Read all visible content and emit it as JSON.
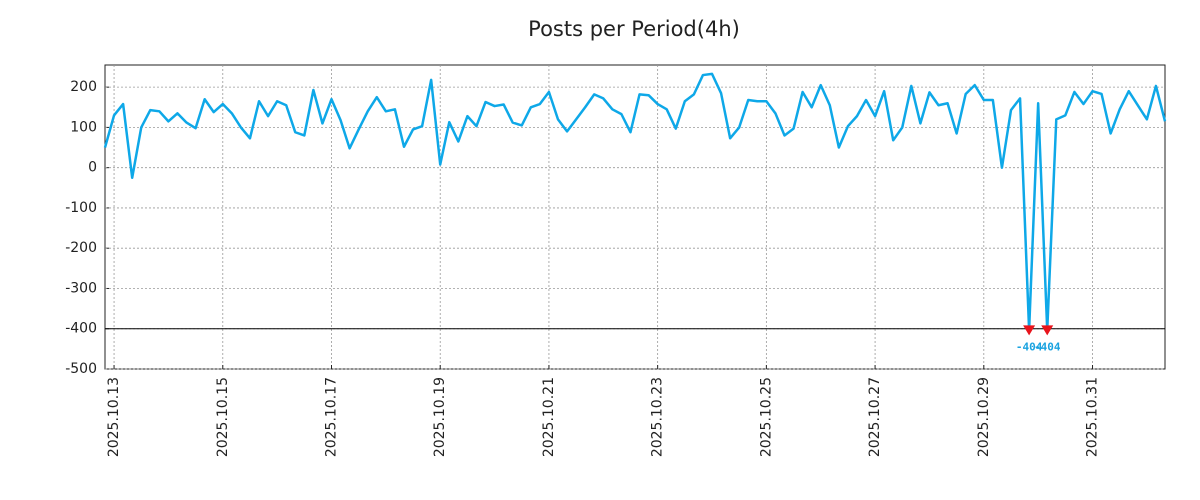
{
  "chart_data": {
    "type": "line",
    "title": "Posts per Period(4h)",
    "categories": [
      null,
      "2025.10.13",
      null,
      null,
      null,
      null,
      null,
      null,
      null,
      null,
      null,
      null,
      null,
      "2025.10.15",
      null,
      null,
      null,
      null,
      null,
      null,
      null,
      null,
      null,
      null,
      null,
      "2025.10.17",
      null,
      null,
      null,
      null,
      null,
      null,
      null,
      null,
      null,
      null,
      null,
      "2025.10.19",
      null,
      null,
      null,
      null,
      null,
      null,
      null,
      null,
      null,
      null,
      null,
      "2025.10.21",
      null,
      null,
      null,
      null,
      null,
      null,
      null,
      null,
      null,
      null,
      null,
      "2025.10.23",
      null,
      null,
      null,
      null,
      null,
      null,
      null,
      null,
      null,
      null,
      null,
      "2025.10.25",
      null,
      null,
      null,
      null,
      null,
      null,
      null,
      null,
      null,
      null,
      null,
      "2025.10.27",
      null,
      null,
      null,
      null,
      null,
      null,
      null,
      null,
      null,
      null,
      null,
      "2025.10.29",
      null,
      null,
      null,
      null,
      null,
      null,
      null,
      null,
      null,
      null,
      null,
      "2025.10.31",
      null,
      null,
      null,
      null,
      null,
      null,
      null,
      null
    ],
    "values": [
      50,
      130,
      158,
      -25,
      100,
      143,
      140,
      115,
      135,
      112,
      98,
      170,
      138,
      158,
      135,
      100,
      73,
      165,
      128,
      165,
      155,
      88,
      80,
      193,
      110,
      170,
      118,
      48,
      95,
      140,
      175,
      140,
      145,
      52,
      95,
      103,
      218,
      8,
      113,
      65,
      128,
      103,
      163,
      153,
      157,
      112,
      105,
      150,
      158,
      188,
      120,
      90,
      120,
      150,
      182,
      172,
      145,
      133,
      88,
      182,
      180,
      158,
      145,
      97,
      165,
      182,
      230,
      233,
      185,
      73,
      100,
      168,
      165,
      165,
      135,
      80,
      97,
      188,
      150,
      205,
      155,
      50,
      103,
      128,
      168,
      128,
      190,
      68,
      100,
      203,
      110,
      187,
      155,
      160,
      85,
      183,
      205,
      168,
      168,
      0,
      143,
      172,
      -404,
      160,
      -404,
      120,
      130,
      188,
      158,
      190,
      183,
      85,
      145,
      190,
      155,
      120,
      203,
      115
    ],
    "value_labels": [
      null,
      null,
      null,
      null,
      null,
      null,
      null,
      null,
      null,
      null,
      null,
      null,
      null,
      null,
      null,
      null,
      null,
      null,
      null,
      null,
      null,
      null,
      null,
      null,
      null,
      null,
      null,
      null,
      null,
      null,
      null,
      null,
      null,
      null,
      null,
      null,
      null,
      null,
      null,
      null,
      null,
      null,
      null,
      null,
      null,
      null,
      null,
      null,
      null,
      null,
      null,
      null,
      null,
      null,
      null,
      null,
      null,
      null,
      null,
      null,
      null,
      null,
      null,
      null,
      null,
      null,
      null,
      null,
      null,
      null,
      null,
      null,
      null,
      null,
      null,
      null,
      null,
      null,
      null,
      null,
      null,
      null,
      null,
      null,
      null,
      null,
      null,
      null,
      null,
      null,
      null,
      null,
      null,
      null,
      null,
      null,
      null,
      null,
      null,
      null,
      null,
      null,
      "-404",
      null,
      "-404",
      null,
      null,
      null,
      null,
      null,
      null,
      null,
      null,
      null,
      null,
      null,
      null,
      null
    ],
    "color": "#0ea8e8",
    "marker_color": "#e8141c",
    "label_color": "#1aa3e0",
    "reference_line": -400,
    "ylim": [
      -500,
      255
    ],
    "yticks": [
      -500,
      -400,
      -300,
      -200,
      -100,
      0,
      100,
      200
    ],
    "grid": true
  }
}
